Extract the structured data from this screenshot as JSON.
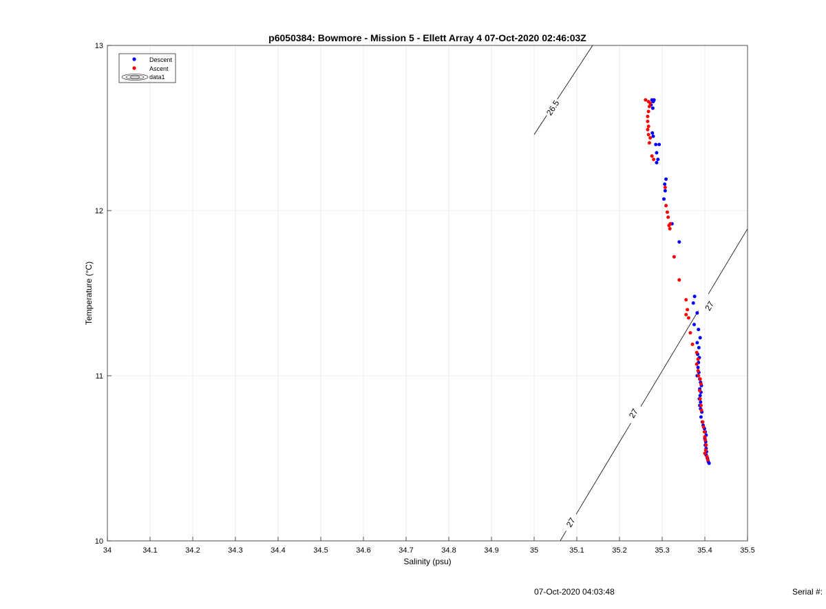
{
  "chart_data": {
    "type": "scatter",
    "title": "p6050384: Bowmore - Mission 5 - Ellett Array 4 07-Oct-2020 02:46:03Z",
    "xlabel": "Salinity (psu)",
    "ylabel": "Temperature (°C)",
    "xlim": [
      34,
      35.5
    ],
    "ylim": [
      10,
      13
    ],
    "x_ticks": [
      "34",
      "34.1",
      "34.2",
      "34.3",
      "34.4",
      "34.5",
      "34.6",
      "34.7",
      "34.8",
      "34.9",
      "35",
      "35.1",
      "35.2",
      "35.3",
      "35.4",
      "35.5"
    ],
    "y_ticks": [
      "10",
      "11",
      "12",
      "13"
    ],
    "grid": true,
    "legend_position": "top-left",
    "legend": [
      "Descent",
      "Ascent",
      "data1"
    ],
    "colors": {
      "descent": "#0000ff",
      "ascent": "#ff0000",
      "contour": "#000000",
      "grid": "#e6e6e6"
    },
    "series": [
      {
        "name": "Descent",
        "points": [
          [
            35.276,
            12.67
          ],
          [
            35.279,
            12.66
          ],
          [
            35.281,
            12.67
          ],
          [
            35.274,
            12.64
          ],
          [
            35.278,
            12.62
          ],
          [
            35.277,
            12.47
          ],
          [
            35.279,
            12.45
          ],
          [
            35.285,
            12.4
          ],
          [
            35.293,
            12.4
          ],
          [
            35.287,
            12.35
          ],
          [
            35.29,
            12.31
          ],
          [
            35.287,
            12.29
          ],
          [
            35.309,
            12.19
          ],
          [
            35.306,
            12.16
          ],
          [
            35.307,
            12.12
          ],
          [
            35.304,
            12.07
          ],
          [
            35.323,
            11.92
          ],
          [
            35.34,
            11.81
          ],
          [
            35.376,
            11.48
          ],
          [
            35.373,
            11.44
          ],
          [
            35.382,
            11.38
          ],
          [
            35.375,
            11.31
          ],
          [
            35.385,
            11.28
          ],
          [
            35.389,
            11.23
          ],
          [
            35.382,
            11.2
          ],
          [
            35.386,
            11.17
          ],
          [
            35.383,
            11.13
          ],
          [
            35.387,
            11.11
          ],
          [
            35.385,
            11.08
          ],
          [
            35.384,
            11.05
          ],
          [
            35.386,
            11.02
          ],
          [
            35.382,
            11.0
          ],
          [
            35.388,
            10.98
          ],
          [
            35.39,
            10.96
          ],
          [
            35.392,
            10.94
          ],
          [
            35.388,
            10.92
          ],
          [
            35.391,
            10.9
          ],
          [
            35.389,
            10.88
          ],
          [
            35.387,
            10.86
          ],
          [
            35.39,
            10.84
          ],
          [
            35.388,
            10.82
          ],
          [
            35.39,
            10.8
          ],
          [
            35.393,
            10.78
          ],
          [
            35.391,
            10.75
          ],
          [
            35.394,
            10.72
          ],
          [
            35.396,
            10.7
          ],
          [
            35.399,
            10.68
          ],
          [
            35.401,
            10.66
          ],
          [
            35.403,
            10.64
          ],
          [
            35.4,
            10.62
          ],
          [
            35.402,
            10.6
          ],
          [
            35.401,
            10.58
          ],
          [
            35.403,
            10.56
          ],
          [
            35.404,
            10.54
          ],
          [
            35.403,
            10.52
          ],
          [
            35.406,
            10.5
          ],
          [
            35.408,
            10.48
          ],
          [
            35.41,
            10.47
          ]
        ]
      },
      {
        "name": "Ascent",
        "points": [
          [
            35.261,
            12.67
          ],
          [
            35.268,
            12.66
          ],
          [
            35.272,
            12.65
          ],
          [
            35.27,
            12.63
          ],
          [
            35.268,
            12.6
          ],
          [
            35.266,
            12.57
          ],
          [
            35.266,
            12.54
          ],
          [
            35.268,
            12.51
          ],
          [
            35.266,
            12.49
          ],
          [
            35.268,
            12.46
          ],
          [
            35.272,
            12.44
          ],
          [
            35.27,
            12.41
          ],
          [
            35.276,
            12.33
          ],
          [
            35.28,
            12.31
          ],
          [
            35.307,
            12.14
          ],
          [
            35.309,
            12.03
          ],
          [
            35.312,
            11.99
          ],
          [
            35.314,
            11.96
          ],
          [
            35.319,
            11.92
          ],
          [
            35.316,
            11.91
          ],
          [
            35.318,
            11.89
          ],
          [
            35.328,
            11.72
          ],
          [
            35.34,
            11.58
          ],
          [
            35.356,
            11.46
          ],
          [
            35.359,
            11.4
          ],
          [
            35.356,
            11.37
          ],
          [
            35.362,
            11.35
          ],
          [
            35.366,
            11.26
          ],
          [
            35.371,
            11.19
          ],
          [
            35.381,
            11.14
          ],
          [
            35.384,
            11.1
          ],
          [
            35.381,
            11.07
          ],
          [
            35.384,
            11.03
          ],
          [
            35.385,
            11.0
          ],
          [
            35.389,
            10.98
          ],
          [
            35.391,
            10.95
          ],
          [
            35.388,
            10.91
          ],
          [
            35.389,
            10.86
          ],
          [
            35.391,
            10.82
          ],
          [
            35.392,
            10.79
          ],
          [
            35.395,
            10.72
          ],
          [
            35.397,
            10.69
          ],
          [
            35.399,
            10.66
          ],
          [
            35.4,
            10.63
          ],
          [
            35.401,
            10.61
          ],
          [
            35.403,
            10.58
          ],
          [
            35.402,
            10.55
          ],
          [
            35.4,
            10.53
          ],
          [
            35.405,
            10.51
          ],
          [
            35.407,
            10.49
          ]
        ]
      }
    ],
    "contours": [
      {
        "label": "26.5",
        "points": [
          [
            35.0,
            12.46
          ],
          [
            35.137,
            13.0
          ]
        ],
        "label_at": [
          35.045,
          12.62
        ]
      },
      {
        "label": "27",
        "points": [
          [
            35.061,
            10.0
          ],
          [
            35.5,
            11.89
          ]
        ],
        "label_at": [
          35.087,
          10.11
        ],
        "extra_labels_at": [
          [
            35.234,
            10.77
          ],
          [
            35.412,
            11.42
          ]
        ]
      }
    ]
  },
  "footer": {
    "timestamp": "07-Oct-2020 04:03:48",
    "serial": "Serial #:"
  }
}
